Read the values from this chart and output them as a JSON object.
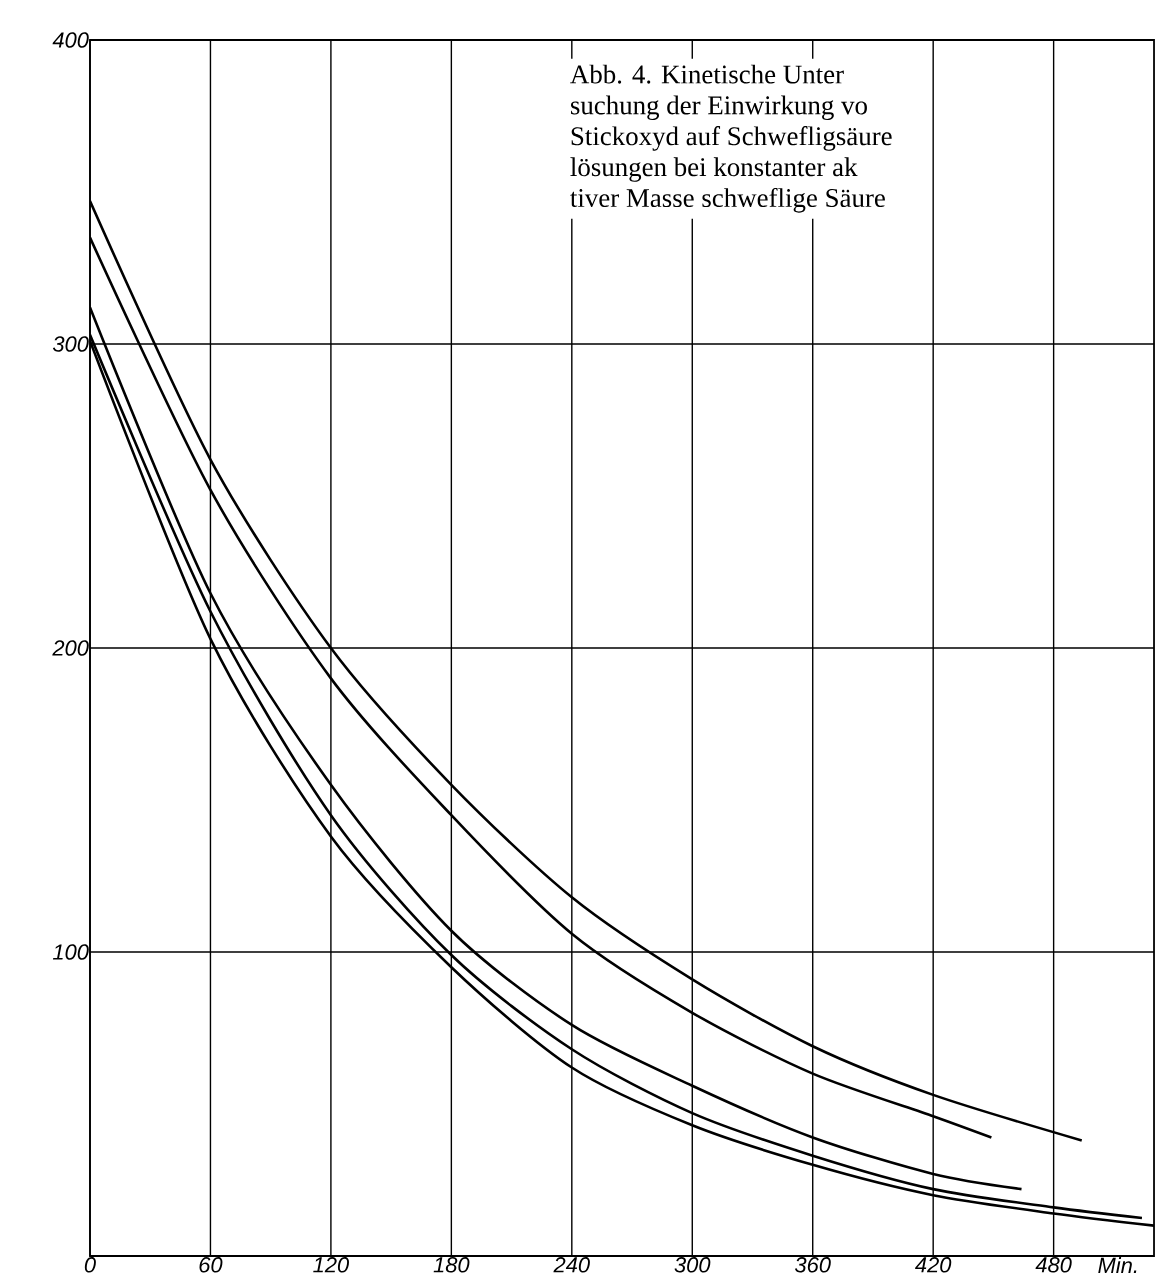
{
  "chart_data": {
    "type": "line",
    "xlabel": "Min.",
    "annotations": [
      "Abb. 4.  Kinetische  Unter",
      "suchung der Einwirkung vo",
      "Stickoxyd auf Schwefligsäure",
      "lösungen  bei  konstanter  ak",
      "tiver Masse  schweflige Säure"
    ],
    "series": [
      {
        "color": "#000000",
        "x": [
          0,
          60,
          120,
          180,
          240,
          300,
          360,
          420,
          494
        ],
        "values": [
          347,
          262,
          200,
          155,
          118,
          91,
          69,
          53,
          38
        ]
      },
      {
        "color": "#000000",
        "x": [
          0,
          60,
          120,
          180,
          240,
          300,
          360,
          420,
          449
        ],
        "values": [
          335,
          252,
          190,
          145,
          106,
          80,
          60,
          46,
          39
        ]
      },
      {
        "color": "#000000",
        "x": [
          0,
          60,
          120,
          180,
          240,
          300,
          360,
          420,
          464
        ],
        "values": [
          312,
          218,
          155,
          107,
          76,
          56,
          39,
          27,
          22
        ]
      },
      {
        "color": "#000000",
        "x": [
          0,
          60,
          120,
          180,
          240,
          300,
          360,
          420,
          480,
          524
        ],
        "values": [
          303,
          212,
          145,
          99,
          68,
          47,
          33,
          22,
          16,
          12.5
        ]
      },
      {
        "color": "#000000",
        "x": [
          0,
          60,
          120,
          180,
          240,
          300,
          360,
          420,
          480,
          530
        ],
        "values": [
          301,
          203,
          138,
          95,
          62,
          43,
          30,
          20,
          14,
          10
        ]
      }
    ],
    "xlim": [
      0,
      530
    ],
    "ylim": [
      0,
      400
    ],
    "xticks": [
      0,
      60,
      120,
      180,
      240,
      300,
      360,
      420,
      480
    ],
    "yticks": [
      100,
      200,
      300,
      400
    ],
    "grid": true,
    "marker": "none",
    "line_style": "solid"
  }
}
